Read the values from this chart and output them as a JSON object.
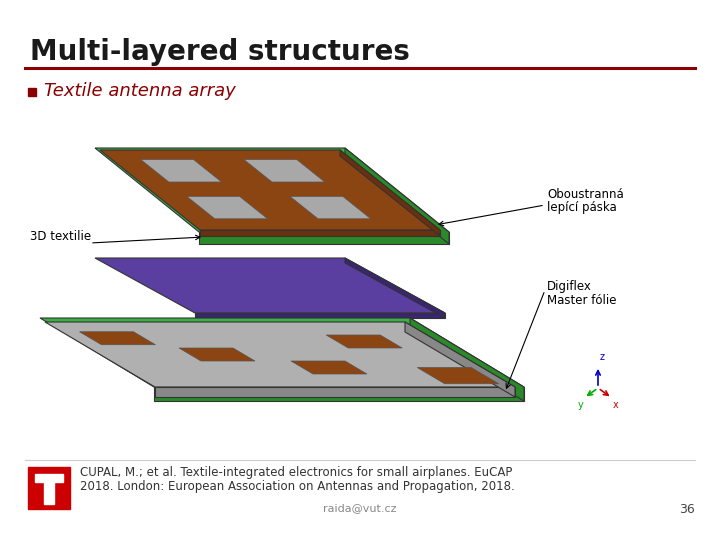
{
  "title": "Multi-layered structures",
  "bullet_text": "Textile antenna array",
  "bullet_color": "#8B0000",
  "title_color": "#1a1a1a",
  "line_color": "#8B0000",
  "label_oboustrana_line1": "Oboustranná",
  "label_oboustrana_line2": "lepící páska",
  "label_digiflex_line1": "Digiflex",
  "label_digiflex_line2": "Master fólie",
  "label_3d": "3D textilie",
  "citation_line1": "CUPAL, M.; et al. Textile-integrated electronics for small airplanes. EuCAP",
  "citation_line2": "2018. London: European Association on Antennas and Propagation, 2018.",
  "footer_email": "raida@vut.cz",
  "footer_page": "36",
  "bg_color": "#ffffff",
  "logo_color_red": "#cc0000",
  "green_border": "#3cb043",
  "brown_top": "#8B4513",
  "gray_bot": "#b0b0b0",
  "purple_mid": "#5b3fa0",
  "patch_gray": "#a8a8a8",
  "footer_line_color": "#cccccc"
}
